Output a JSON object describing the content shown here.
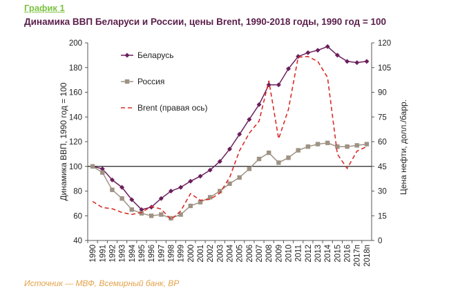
{
  "header": {
    "figure_label": "График 1",
    "title": "Динамика ВВП Беларуси и России, цены Brent, 1990-2018 годы, 1990 год = 100"
  },
  "footer": {
    "source": "Источник — МВФ, Всемирный банк, BP"
  },
  "colors": {
    "belarus": "#6b1f5c",
    "russia": "#9e9283",
    "brent": "#d92b26",
    "baseline": "#222222",
    "title": "#5a1d4a",
    "label": "#7cc242",
    "source": "#e3a24a"
  },
  "chart_data": {
    "type": "line",
    "categories": [
      "1990",
      "1991",
      "1992",
      "1993",
      "1994",
      "1995",
      "1996",
      "1997",
      "1998",
      "1999",
      "2000",
      "2001",
      "2002",
      "2003",
      "2004",
      "2005",
      "2006",
      "2007",
      "2008",
      "2009",
      "2010",
      "2011",
      "2012",
      "2013",
      "2014",
      "2015",
      "2016",
      "2017п",
      "2018п"
    ],
    "ylabel": "Динамика ВВП, 1990 год = 100",
    "y2label": "Цена нефти, долл./барр.",
    "ylim": [
      40,
      200
    ],
    "yticks": [
      40,
      60,
      80,
      100,
      120,
      140,
      160,
      180,
      200
    ],
    "y2lim": [
      0,
      120
    ],
    "y2ticks": [
      0,
      15,
      30,
      45,
      60,
      75,
      90,
      105,
      120
    ],
    "reference_line": 100,
    "legend_position": "top-left",
    "series": [
      {
        "name": "Беларусь",
        "axis": "left",
        "marker": "diamond",
        "values": [
          100,
          98,
          89,
          83,
          73,
          65,
          67,
          74,
          80,
          83,
          88,
          92,
          97,
          104,
          114,
          126,
          138,
          150,
          166,
          166,
          179,
          189,
          192,
          194,
          197,
          190,
          185,
          184,
          185
        ]
      },
      {
        "name": "Россия",
        "axis": "left",
        "marker": "square",
        "values": [
          100,
          95,
          81,
          74,
          65,
          62,
          60,
          61,
          58,
          61,
          68,
          71,
          75,
          80,
          86,
          91,
          98,
          106,
          111,
          103,
          107,
          113,
          116,
          118,
          119,
          116,
          116,
          117,
          118
        ]
      },
      {
        "name": "Brent (правая ось)",
        "axis": "right",
        "style": "dashed",
        "values": [
          23.7,
          20.0,
          19.3,
          17.0,
          15.8,
          17.0,
          20.7,
          19.1,
          12.7,
          17.9,
          28.5,
          24.4,
          25.0,
          28.8,
          38.3,
          54.5,
          65.1,
          72.4,
          97.0,
          61.7,
          79.5,
          111.3,
          111.7,
          108.7,
          99.0,
          52.4,
          43.7,
          54.2,
          57.0
        ]
      }
    ]
  }
}
